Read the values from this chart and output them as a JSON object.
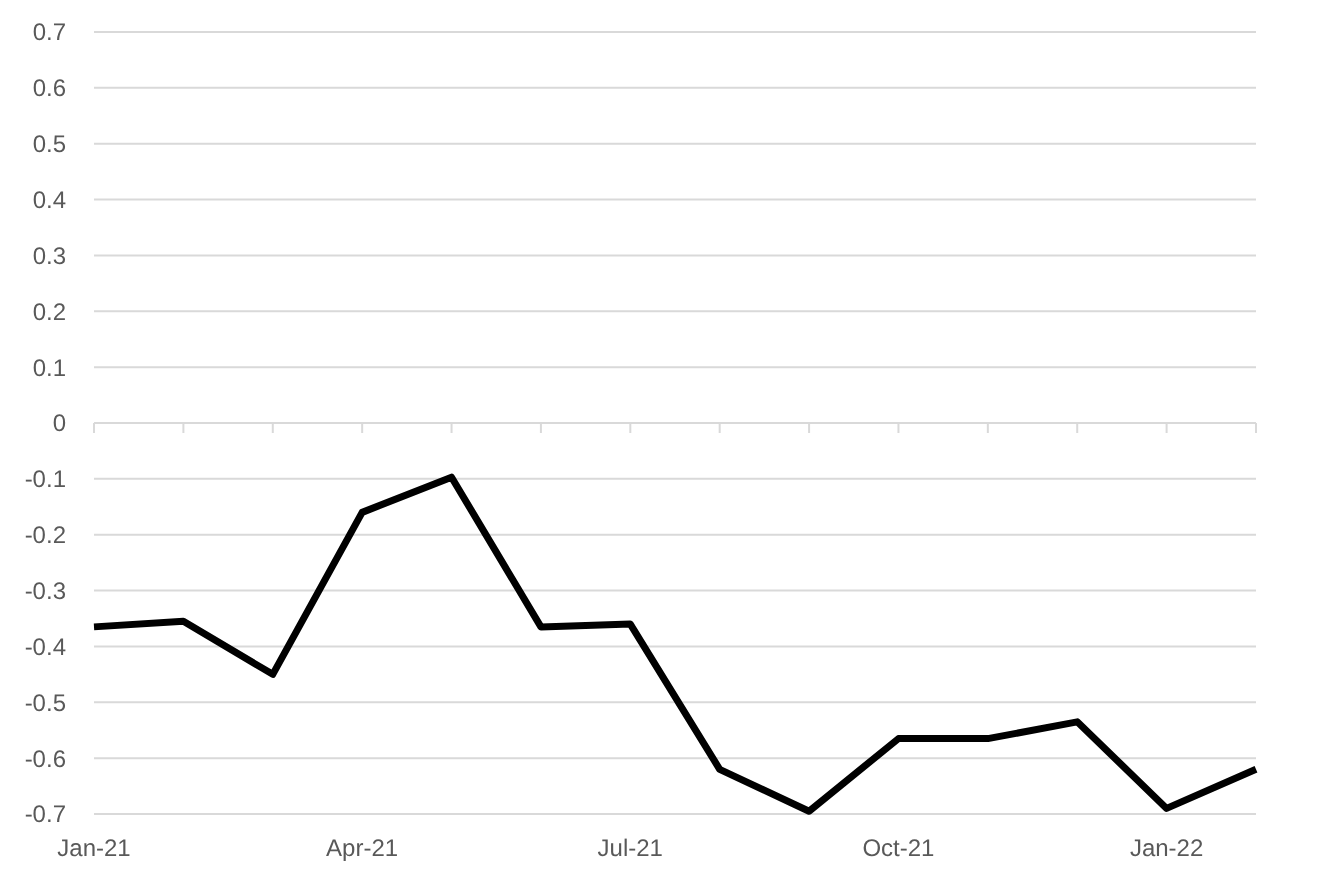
{
  "chart_data": {
    "type": "line",
    "categories": [
      "Jan-21",
      null,
      null,
      "Apr-21",
      null,
      null,
      "Jul-21",
      null,
      null,
      "Oct-21",
      null,
      null,
      "Jan-22",
      null
    ],
    "series": [
      {
        "color": "#000000",
        "values": [
          -0.365,
          -0.355,
          -0.45,
          -0.16,
          -0.097,
          -0.365,
          -0.36,
          -0.62,
          -0.695,
          -0.565,
          -0.565,
          -0.535,
          -0.69,
          -0.62
        ]
      }
    ],
    "ylim": [
      -0.7,
      0.7
    ],
    "yticks": [
      -0.7,
      -0.6,
      -0.5,
      -0.4,
      -0.3,
      -0.2,
      -0.1,
      0,
      0.1,
      0.2,
      0.3,
      0.4,
      0.5,
      0.6,
      0.7
    ],
    "grid": "y",
    "marker": "none",
    "line_style": "solid"
  }
}
